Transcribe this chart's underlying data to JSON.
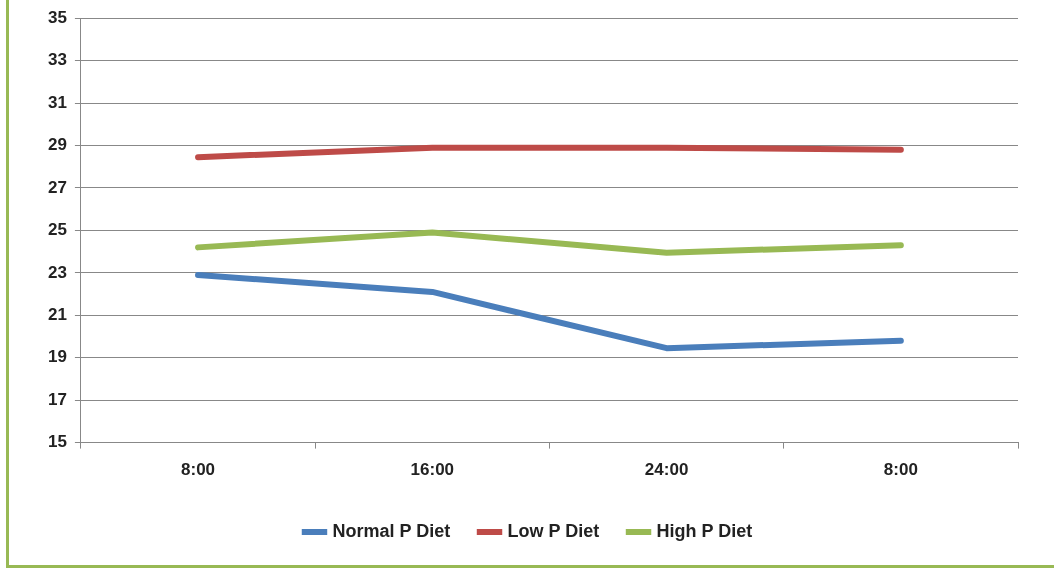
{
  "chart_data": {
    "type": "line",
    "categories": [
      "8:00",
      "16:00",
      "24:00",
      "8:00"
    ],
    "series": [
      {
        "name": "Normal P Diet",
        "color": "#4a7ebb",
        "values": [
          22.9,
          22.1,
          19.45,
          19.8
        ]
      },
      {
        "name": "Low P Diet",
        "color": "#be4b48",
        "values": [
          28.45,
          28.9,
          28.9,
          28.8
        ]
      },
      {
        "name": "High P Diet",
        "color": "#98b954",
        "values": [
          24.2,
          24.9,
          23.95,
          24.3
        ]
      }
    ],
    "ylim": [
      15,
      35
    ],
    "yticks": [
      15,
      17,
      19,
      21,
      23,
      25,
      27,
      29,
      31,
      33,
      35
    ],
    "grid": "y",
    "legend": "bottom",
    "marker": "none",
    "line_style": "solid"
  }
}
